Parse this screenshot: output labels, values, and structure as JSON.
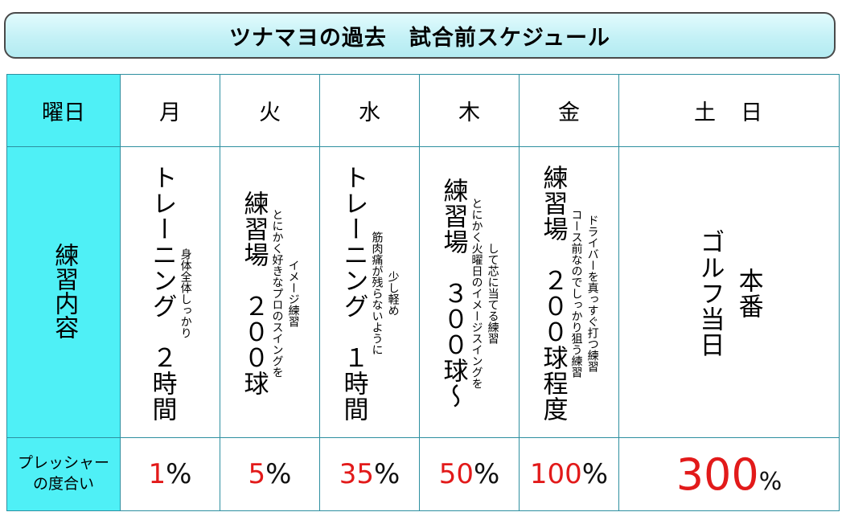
{
  "title": "ツナマヨの過去　試合前スケジュール",
  "headers": {
    "weekday": "曜日",
    "practice": "練習内容",
    "pressure_line1": "プレッシャー",
    "pressure_line2": "の度合い"
  },
  "days": [
    {
      "day": "月",
      "main": "トレーニング　２時間",
      "sub": [
        "身体全体しっかり"
      ],
      "pressure_num": "1",
      "pressure_unit": "%"
    },
    {
      "day": "火",
      "main": "練習場　２００球",
      "sub": [
        "イメージ練習",
        "とにかく好きなプロのスイングを"
      ],
      "pressure_num": "5",
      "pressure_unit": "%"
    },
    {
      "day": "水",
      "main": "トレーニング　１時間",
      "sub": [
        "少し軽め",
        "筋肉痛が残らないように"
      ],
      "pressure_num": "35",
      "pressure_unit": "%"
    },
    {
      "day": "木",
      "main": "練習場　３００球～",
      "sub": [
        "して芯に当てる練習",
        "とにかく火曜日のイメージスイングを"
      ],
      "pressure_num": "50",
      "pressure_unit": "%"
    },
    {
      "day": "金",
      "main": "練習場　２００球程度",
      "sub": [
        "ドライバーを真っすぐ打つ練習",
        "コース前なのでしっかり狙う練習"
      ],
      "pressure_num": "100",
      "pressure_unit": "%"
    },
    {
      "day": "土　日",
      "main_lines": [
        "本番",
        "ゴルフ当日"
      ],
      "pressure_num": "300",
      "pressure_unit": "%"
    }
  ],
  "colors": {
    "header_bg": "#4ff0f6",
    "pressure_text": "#e21a1a",
    "title_bg": "#c4f1f6"
  }
}
